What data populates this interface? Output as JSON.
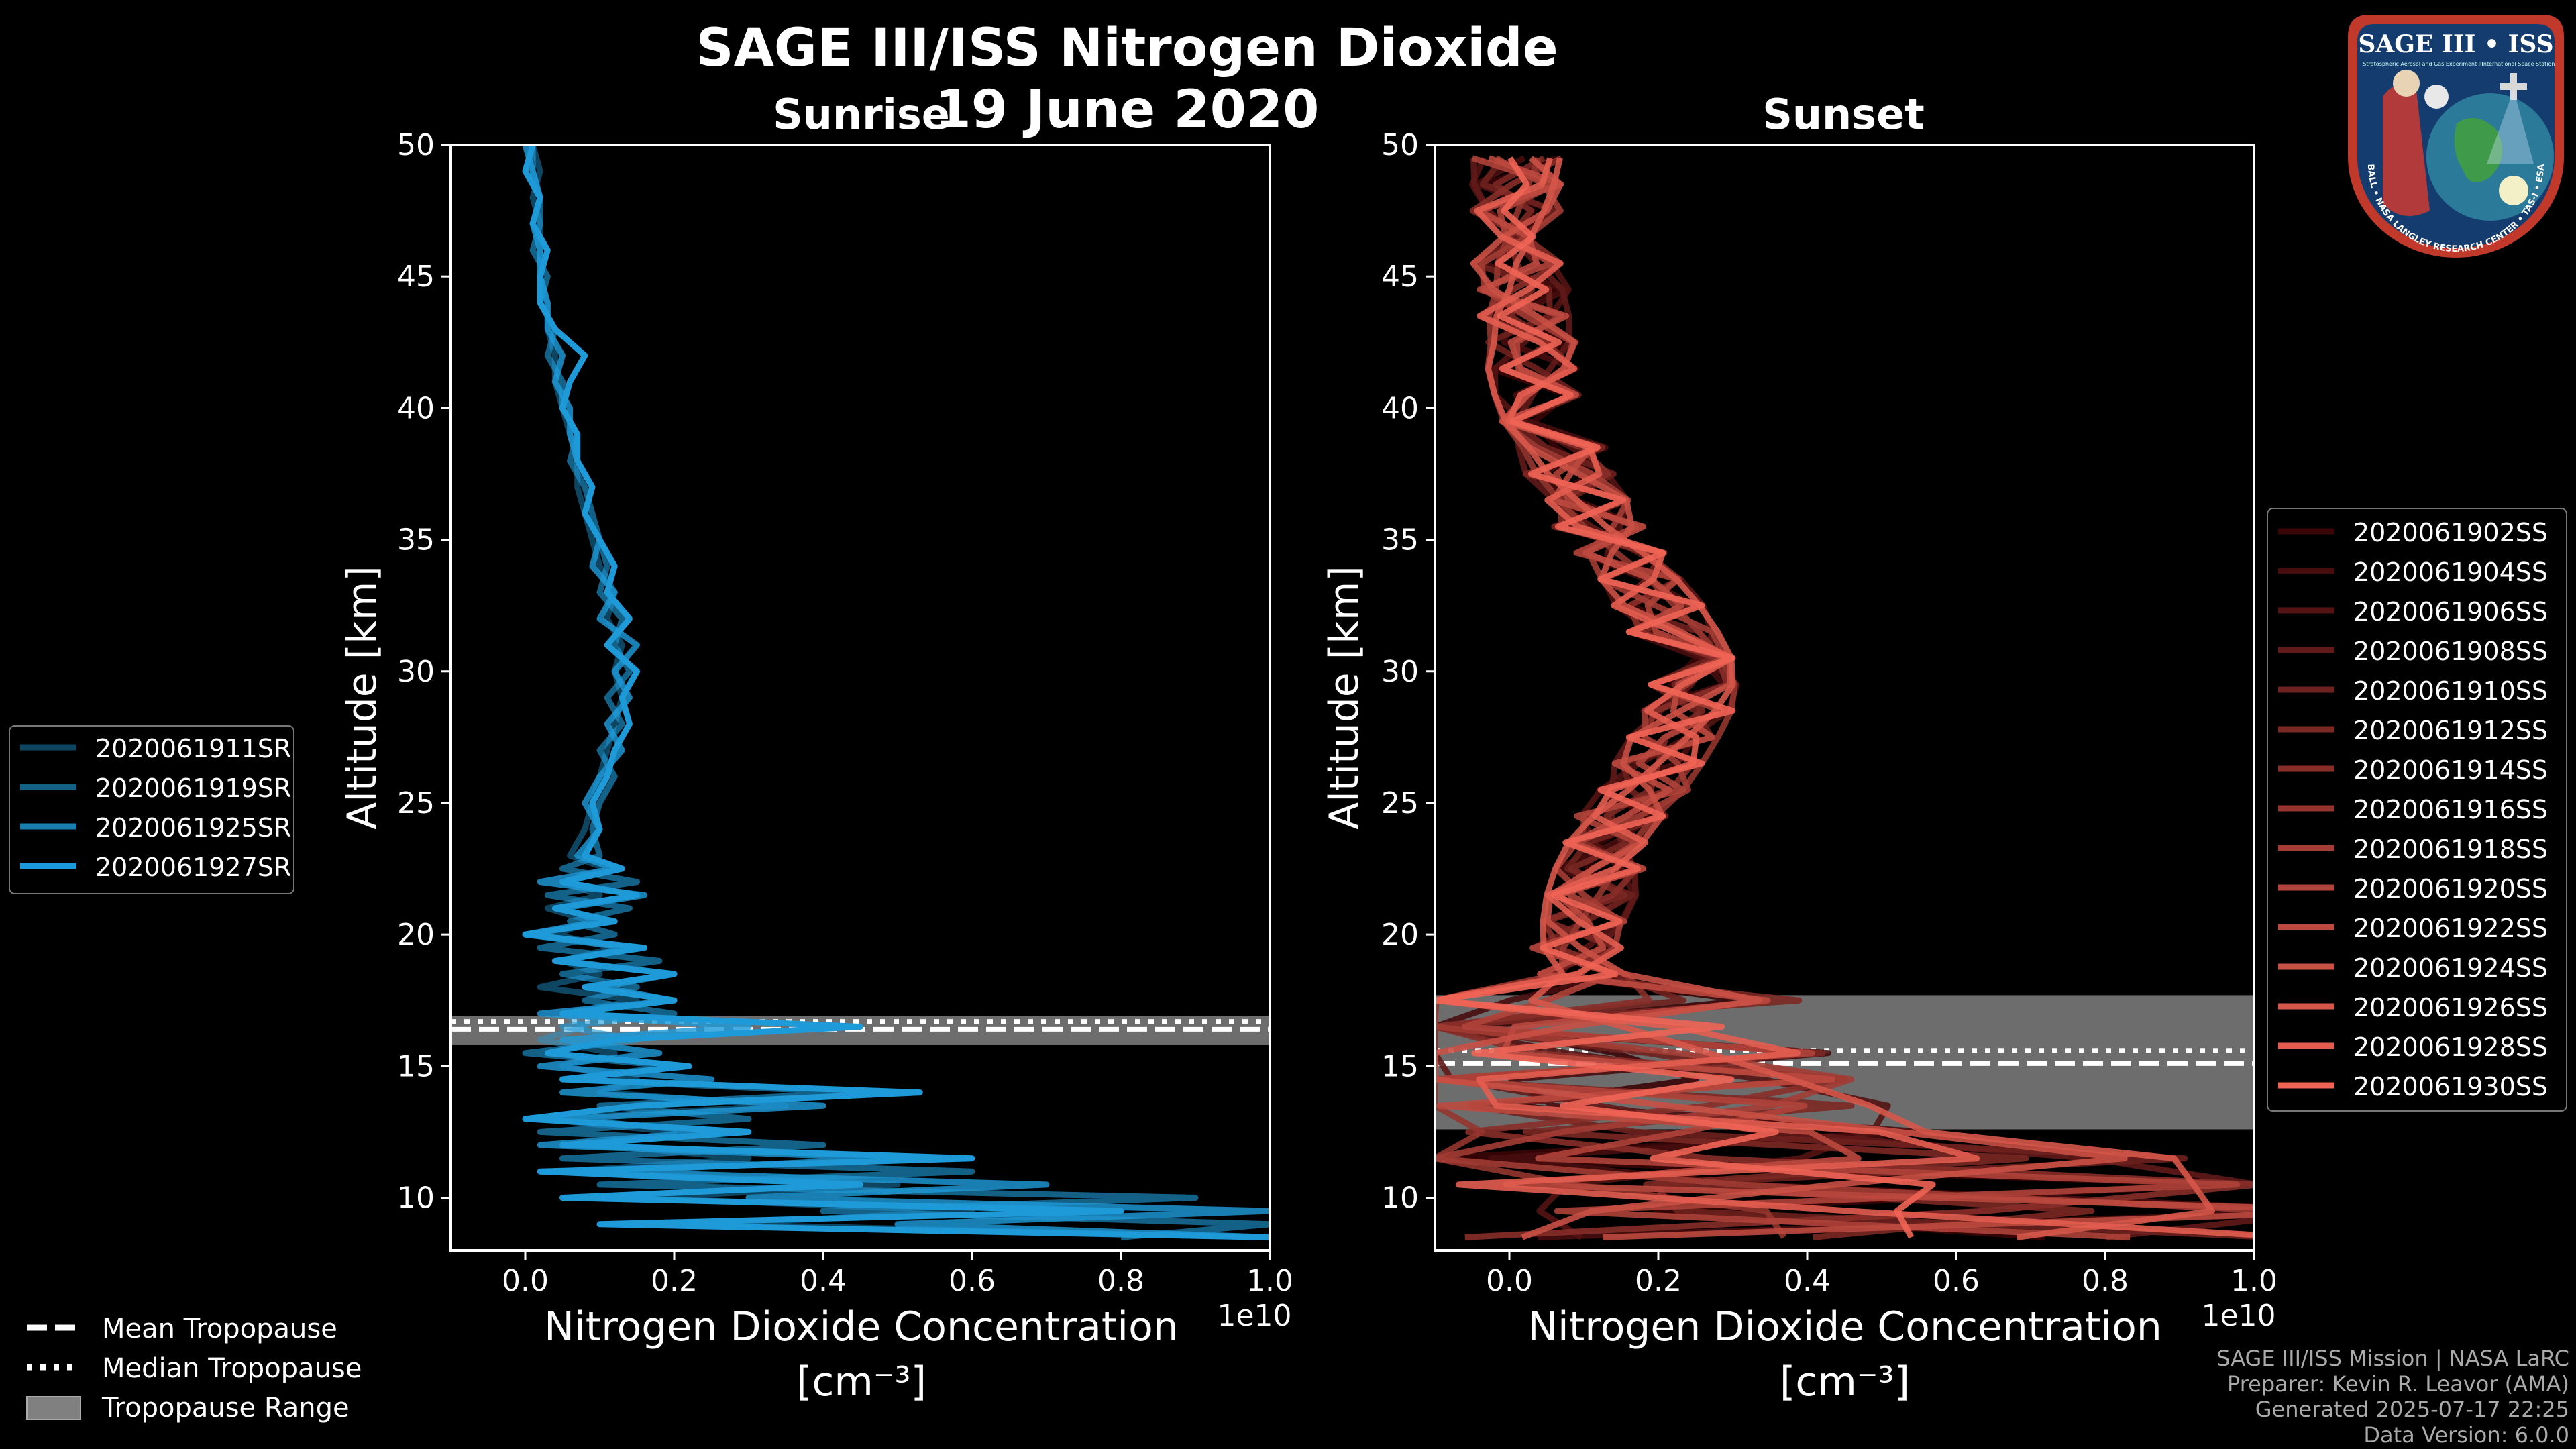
{
  "figure": {
    "title": "SAGE III/ISS Nitrogen Dioxide",
    "date": "19 June 2020"
  },
  "panels": {
    "sunrise": {
      "title": "Sunrise"
    },
    "sunset": {
      "title": "Sunset"
    }
  },
  "tropopause_legend": [
    "Mean Tropopause",
    "Median Tropopause",
    "Tropopause Range"
  ],
  "footer": [
    "SAGE III/ISS Mission | NASA LaRC",
    "Preparer: Kevin R. Leavor (AMA)",
    "Generated 2025-07-17 22:25",
    "Data Version: 6.0.0"
  ],
  "logo": {
    "title": "SAGE III • ISS",
    "ring_text": "BALL • NASA LANGLEY RESEARCH CENTER • TAS-I • ESA",
    "subtitle_left": "Stratospheric Aerosol and Gas Experiment III",
    "subtitle_right": "International Space Station"
  },
  "colors": {
    "sunrise": "#1f9ad8",
    "sunset_dark": "#3a0608",
    "sunset_light": "#f06455",
    "tropopause_range": "#808080"
  },
  "chart_data": [
    {
      "type": "line",
      "title": "Sunrise",
      "xlabel": "Nitrogen Dioxide Concentration",
      "xlabel_units": "[cm⁻³]",
      "ylabel": "Altitude [km]",
      "x_scale_label": "1e10",
      "xlim": [
        -0.1,
        1.0
      ],
      "ylim": [
        8,
        50
      ],
      "xticks": [
        0.0,
        0.2,
        0.4,
        0.6,
        0.8,
        1.0
      ],
      "xtick_labels": [
        "0.0",
        "0.2",
        "0.4",
        "0.6",
        "0.8",
        "1.0"
      ],
      "yticks": [
        10,
        15,
        20,
        25,
        30,
        35,
        40,
        45,
        50
      ],
      "legend_position": "left",
      "tropopause": {
        "mean": 16.4,
        "median": 16.7,
        "range": [
          15.8,
          16.9
        ]
      },
      "altitudes": [
        8.5,
        9,
        9.5,
        10,
        10.5,
        11,
        11.5,
        12,
        12.5,
        13,
        13.5,
        14,
        14.5,
        15,
        15.5,
        16,
        16.5,
        17,
        17.5,
        18,
        18.5,
        19,
        19.5,
        20,
        20.5,
        21,
        21.5,
        22,
        22.5,
        23,
        24,
        25,
        26,
        27,
        28,
        29,
        30,
        31,
        32,
        33,
        34,
        35,
        36,
        37,
        38,
        39,
        40,
        41,
        42,
        43,
        44,
        45,
        46,
        47,
        48,
        49,
        50
      ],
      "series": [
        {
          "name": "2020061911SR",
          "values": [
            1.0,
            0.25,
            0.6,
            0.15,
            0.5,
            0.05,
            0.3,
            0.1,
            0.2,
            0.02,
            0.35,
            0.1,
            0.15,
            0.05,
            0.12,
            0.02,
            0.08,
            0.05,
            0.15,
            0.02,
            0.1,
            0.05,
            0.12,
            0.04,
            0.09,
            0.03,
            0.1,
            0.05,
            0.11,
            0.06,
            0.08,
            0.09,
            0.1,
            0.11,
            0.12,
            0.13,
            0.12,
            0.13,
            0.11,
            0.12,
            0.1,
            0.09,
            0.08,
            0.07,
            0.07,
            0.06,
            0.05,
            0.04,
            0.04,
            0.03,
            0.03,
            0.02,
            0.02,
            0.02,
            0.01,
            0.02,
            0.01
          ]
        },
        {
          "name": "2020061919SR",
          "values": [
            0.8,
            1.0,
            0.4,
            0.9,
            0.1,
            0.6,
            0.05,
            0.4,
            0.02,
            0.3,
            0.1,
            0.45,
            0.05,
            0.2,
            0.0,
            0.15,
            0.05,
            0.2,
            0.08,
            0.15,
            0.05,
            0.18,
            0.02,
            0.12,
            0.06,
            0.14,
            0.03,
            0.15,
            0.05,
            0.1,
            0.09,
            0.1,
            0.12,
            0.1,
            0.13,
            0.11,
            0.14,
            0.12,
            0.13,
            0.1,
            0.11,
            0.1,
            0.09,
            0.08,
            0.06,
            0.07,
            0.05,
            0.05,
            0.03,
            0.04,
            0.02,
            0.03,
            0.01,
            0.02,
            0.02,
            0.01,
            0.01
          ]
        },
        {
          "name": "2020061925SR",
          "values": [
            1.0,
            0.5,
            1.0,
            0.3,
            0.7,
            0.1,
            0.5,
            0.02,
            0.25,
            0.05,
            0.4,
            0.05,
            0.25,
            0.02,
            0.18,
            0.05,
            0.3,
            0.02,
            0.2,
            0.1,
            0.2,
            0.05,
            0.14,
            0.0,
            0.1,
            0.05,
            0.16,
            0.02,
            0.12,
            0.07,
            0.1,
            0.08,
            0.1,
            0.13,
            0.11,
            0.14,
            0.12,
            0.15,
            0.1,
            0.12,
            0.09,
            0.1,
            0.08,
            0.09,
            0.07,
            0.06,
            0.06,
            0.04,
            0.05,
            0.03,
            0.03,
            0.02,
            0.02,
            0.01,
            0.02,
            0.01,
            0.0
          ]
        },
        {
          "name": "2020061927SR",
          "values": [
            1.0,
            0.1,
            0.8,
            0.05,
            0.45,
            0.02,
            0.6,
            0.05,
            0.3,
            0.0,
            0.15,
            0.53,
            0.05,
            0.22,
            0.03,
            0.12,
            0.45,
            0.05,
            0.2,
            0.08,
            0.2,
            0.04,
            0.16,
            0.0,
            0.12,
            0.04,
            0.15,
            0.05,
            0.13,
            0.08,
            0.1,
            0.09,
            0.11,
            0.12,
            0.14,
            0.13,
            0.15,
            0.11,
            0.14,
            0.11,
            0.12,
            0.1,
            0.08,
            0.09,
            0.07,
            0.07,
            0.05,
            0.06,
            0.08,
            0.04,
            0.02,
            0.02,
            0.03,
            0.01,
            0.02,
            0.0,
            0.01
          ]
        }
      ]
    },
    {
      "type": "line",
      "title": "Sunset",
      "xlabel": "Nitrogen Dioxide Concentration",
      "xlabel_units": "[cm⁻³]",
      "ylabel": "Altitude [km]",
      "x_scale_label": "1e10",
      "xlim": [
        -0.1,
        1.0
      ],
      "ylim": [
        8,
        50
      ],
      "xticks": [
        0.0,
        0.2,
        0.4,
        0.6,
        0.8,
        1.0
      ],
      "xtick_labels": [
        "0.0",
        "0.2",
        "0.4",
        "0.6",
        "0.8",
        "1.0"
      ],
      "yticks": [
        10,
        15,
        20,
        25,
        30,
        35,
        40,
        45,
        50
      ],
      "legend_position": "right",
      "tropopause": {
        "mean": 15.1,
        "median": 15.6,
        "range": [
          12.6,
          17.7
        ]
      },
      "series_names": [
        "2020061902SS",
        "2020061904SS",
        "2020061906SS",
        "2020061908SS",
        "2020061910SS",
        "2020061912SS",
        "2020061914SS",
        "2020061916SS",
        "2020061918SS",
        "2020061920SS",
        "2020061922SS",
        "2020061924SS",
        "2020061926SS",
        "2020061928SS",
        "2020061930SS"
      ],
      "altitudes": [
        8.5,
        9.5,
        10.5,
        11.5,
        12.5,
        13.5,
        14.5,
        15.5,
        16.5,
        17.5,
        18.5,
        19.5,
        20.5,
        21.5,
        22.5,
        23.5,
        24.5,
        25.5,
        26.5,
        27.5,
        28.5,
        29.5,
        30.5,
        31.5,
        32.5,
        33.5,
        34.5,
        35.5,
        36.5,
        37.5,
        38.5,
        39.5,
        40.5,
        41.5,
        42.5,
        43.5,
        44.5,
        45.5,
        46.5,
        47.5,
        48.5,
        49.5
      ],
      "mean_profile": [
        0.5,
        0.6,
        0.45,
        0.35,
        0.25,
        0.2,
        0.15,
        0.12,
        0.1,
        0.08,
        0.1,
        0.09,
        0.1,
        0.11,
        0.12,
        0.13,
        0.15,
        0.18,
        0.2,
        0.22,
        0.24,
        0.25,
        0.24,
        0.22,
        0.2,
        0.18,
        0.15,
        0.12,
        0.1,
        0.08,
        0.07,
        0.05,
        0.04,
        0.03,
        0.03,
        0.02,
        0.02,
        0.01,
        0.01,
        0.01,
        0.01,
        0.01
      ]
    }
  ]
}
